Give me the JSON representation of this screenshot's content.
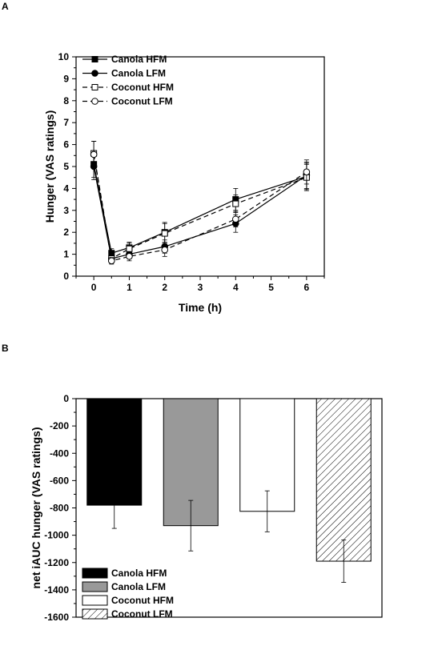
{
  "chart_data": [
    {
      "panel": "A",
      "type": "line",
      "xlabel": "Time (h)",
      "ylabel": "Hunger (VAS ratings)",
      "xlim": [
        -0.5,
        6.5
      ],
      "ylim": [
        0,
        10
      ],
      "xticks": [
        0,
        1,
        2,
        3,
        4,
        5,
        6
      ],
      "yticks": [
        0,
        1,
        2,
        3,
        4,
        5,
        6,
        7,
        8,
        9,
        10
      ],
      "legend_position": "top-left",
      "series": [
        {
          "name": "Canola HFM",
          "marker": "square-filled",
          "line": "solid",
          "x": [
            0,
            0.5,
            1,
            2,
            4,
            6
          ],
          "y": [
            5.1,
            1.05,
            1.3,
            2.0,
            3.5,
            4.55
          ],
          "err": [
            0.6,
            0.2,
            0.25,
            0.45,
            0.5,
            0.6
          ]
        },
        {
          "name": "Canola LFM",
          "marker": "circle-filled",
          "line": "solid",
          "x": [
            0,
            0.5,
            1,
            2,
            4,
            6
          ],
          "y": [
            5.0,
            0.8,
            1.0,
            1.35,
            2.4,
            4.6
          ],
          "err": [
            0.6,
            0.2,
            0.2,
            0.3,
            0.4,
            0.6
          ]
        },
        {
          "name": "Coconut HFM",
          "marker": "square-open",
          "line": "dashed",
          "x": [
            0,
            0.5,
            1,
            2,
            4,
            6
          ],
          "y": [
            5.6,
            0.8,
            1.25,
            1.95,
            3.3,
            4.5
          ],
          "err": [
            0.55,
            0.2,
            0.25,
            0.45,
            0.4,
            0.6
          ]
        },
        {
          "name": "Coconut LFM",
          "marker": "circle-open",
          "line": "dashed",
          "x": [
            0,
            0.5,
            1,
            2,
            4,
            6
          ],
          "y": [
            5.55,
            0.7,
            0.9,
            1.2,
            2.6,
            4.75
          ],
          "err": [
            0.6,
            0.15,
            0.2,
            0.3,
            0.35,
            0.55
          ]
        }
      ]
    },
    {
      "panel": "B",
      "type": "bar",
      "ylabel": "net iAUC hunger (VAS ratings)",
      "ylim": [
        -1600,
        0
      ],
      "yticks": [
        0,
        -200,
        -400,
        -600,
        -800,
        -1000,
        -1200,
        -1400,
        -1600
      ],
      "legend_position": "bottom-left",
      "series": [
        {
          "name": "Canola HFM",
          "value": -780,
          "err": 170,
          "fill": "#000000",
          "pattern": "solid"
        },
        {
          "name": "Canola LFM",
          "value": -930,
          "err": 185,
          "fill": "#999999",
          "pattern": "solid"
        },
        {
          "name": "Coconut HFM",
          "value": -825,
          "err": 150,
          "fill": "#ffffff",
          "pattern": "solid"
        },
        {
          "name": "Coconut LFM",
          "value": -1190,
          "err": 155,
          "fill": "#ffffff",
          "pattern": "hatched"
        }
      ]
    }
  ]
}
